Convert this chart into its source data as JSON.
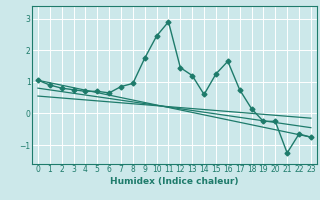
{
  "title": "",
  "xlabel": "Humidex (Indice chaleur)",
  "ylabel": "",
  "background_color": "#cce8ea",
  "grid_color": "#ffffff",
  "line_color": "#1e7b6b",
  "xlim": [
    -0.5,
    23.5
  ],
  "ylim": [
    -1.6,
    3.4
  ],
  "yticks": [
    -1,
    0,
    1,
    2,
    3
  ],
  "xticks": [
    0,
    1,
    2,
    3,
    4,
    5,
    6,
    7,
    8,
    9,
    10,
    11,
    12,
    13,
    14,
    15,
    16,
    17,
    18,
    19,
    20,
    21,
    22,
    23
  ],
  "series": [
    {
      "x": [
        0,
        1,
        2,
        3,
        4,
        5,
        6,
        7,
        8,
        9,
        10,
        11,
        12,
        13,
        14,
        15,
        16,
        17,
        18,
        19,
        20,
        21,
        22,
        23
      ],
      "y": [
        1.05,
        0.9,
        0.8,
        0.75,
        0.7,
        0.7,
        0.65,
        0.85,
        0.95,
        1.75,
        2.45,
        2.9,
        1.45,
        1.2,
        0.6,
        1.25,
        1.65,
        0.75,
        0.15,
        -0.25,
        -0.25,
        -1.25,
        -0.65,
        -0.75
      ],
      "marker": "D",
      "markersize": 2.5,
      "linewidth": 1.0
    },
    {
      "x": [
        0,
        23
      ],
      "y": [
        1.05,
        -0.75
      ],
      "marker": null,
      "linewidth": 0.9
    },
    {
      "x": [
        0,
        23
      ],
      "y": [
        0.8,
        -0.45
      ],
      "marker": null,
      "linewidth": 0.9
    },
    {
      "x": [
        0,
        23
      ],
      "y": [
        0.55,
        -0.15
      ],
      "marker": null,
      "linewidth": 0.9
    }
  ]
}
